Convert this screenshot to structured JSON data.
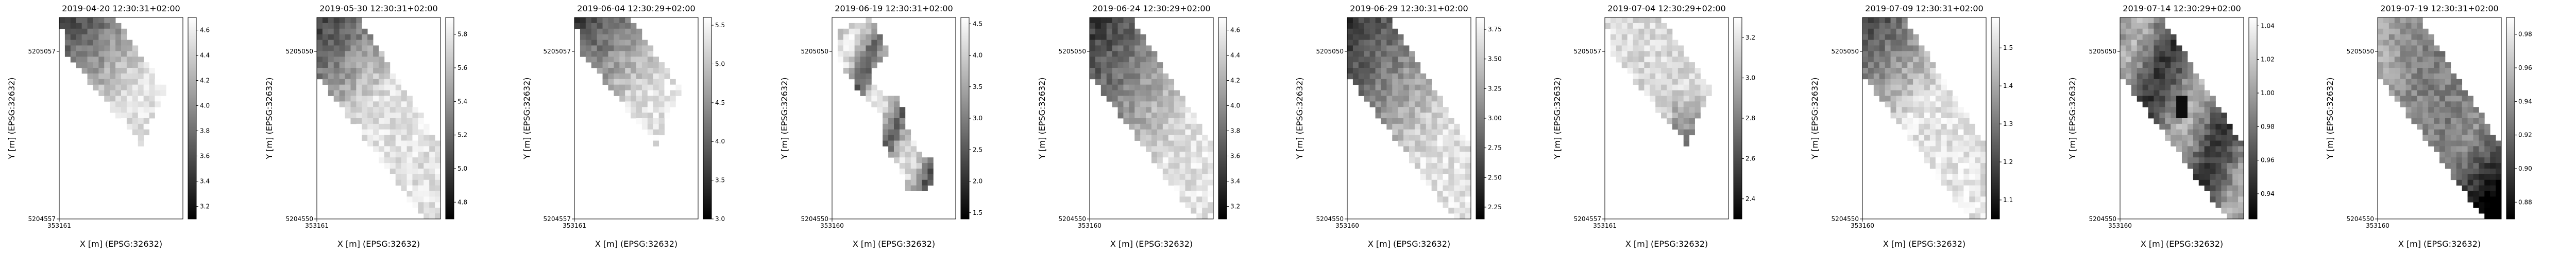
{
  "chart_data": [
    {
      "type": "heatmap",
      "title": "2019-04-20 12:30:31+02:00",
      "xlabel": "X [m] (EPSG:32632)",
      "ylabel": "Y [m] (EPSG:32632)",
      "x_ticks": [
        "353161"
      ],
      "y_ticks": [
        "5205057",
        "5204557"
      ],
      "colorbar": {
        "min": 3.1,
        "max": 4.7,
        "ticks": [
          "3.2",
          "3.4",
          "3.6",
          "3.8",
          "4.0",
          "4.2",
          "4.4",
          "4.6"
        ]
      },
      "shape": "A",
      "pattern": "topdark",
      "hotspot": null
    },
    {
      "type": "heatmap",
      "title": "2019-05-30 12:30:31+02:00",
      "xlabel": "X [m] (EPSG:32632)",
      "ylabel": "Y [m] (EPSG:32632)",
      "x_ticks": [
        "353161"
      ],
      "y_ticks": [
        "5205050",
        "5204550"
      ],
      "colorbar": {
        "min": 4.7,
        "max": 5.9,
        "ticks": [
          "4.8",
          "5.0",
          "5.2",
          "5.4",
          "5.6",
          "5.8"
        ]
      },
      "shape": "B",
      "pattern": "topdark",
      "hotspot": null
    },
    {
      "type": "heatmap",
      "title": "2019-06-04 12:30:29+02:00",
      "xlabel": "X [m] (EPSG:32632)",
      "ylabel": "Y [m] (EPSG:32632)",
      "x_ticks": [
        "353161"
      ],
      "y_ticks": [
        "5205057",
        "5204557"
      ],
      "colorbar": {
        "min": 3.0,
        "max": 5.6,
        "ticks": [
          "3.0",
          "3.5",
          "4.0",
          "4.5",
          "5.0",
          "5.5"
        ]
      },
      "shape": "A",
      "pattern": "topdark",
      "hotspot": null
    },
    {
      "type": "heatmap",
      "title": "2019-06-19 12:30:31+02:00",
      "xlabel": "X [m] (EPSG:32632)",
      "ylabel": "Y [m] (EPSG:32632)",
      "x_ticks": [
        "353160"
      ],
      "y_ticks": [
        "5205050",
        "5204550"
      ],
      "colorbar": {
        "min": 1.4,
        "max": 4.6,
        "ticks": [
          "1.5",
          "2.0",
          "2.5",
          "3.0",
          "3.5",
          "4.0",
          "4.5"
        ]
      },
      "shape": "C",
      "pattern": "patchy",
      "hotspot": null
    },
    {
      "type": "heatmap",
      "title": "2019-06-24 12:30:29+02:00",
      "xlabel": "X [m] (EPSG:32632)",
      "ylabel": "Y [m] (EPSG:32632)",
      "x_ticks": [
        "353160"
      ],
      "y_ticks": [
        "5205050",
        "5204550"
      ],
      "colorbar": {
        "min": 3.1,
        "max": 4.7,
        "ticks": [
          "3.2",
          "3.4",
          "3.6",
          "3.8",
          "4.0",
          "4.2",
          "4.4",
          "4.6"
        ]
      },
      "shape": "B",
      "pattern": "gradient",
      "hotspot": null
    },
    {
      "type": "heatmap",
      "title": "2019-06-29 12:30:31+02:00",
      "xlabel": "X [m] (EPSG:32632)",
      "ylabel": "Y [m] (EPSG:32632)",
      "x_ticks": [
        "353160"
      ],
      "y_ticks": [
        "5205050",
        "5204550"
      ],
      "colorbar": {
        "min": 2.15,
        "max": 3.85,
        "ticks": [
          "2.25",
          "2.50",
          "2.75",
          "3.00",
          "3.25",
          "3.50",
          "3.75"
        ]
      },
      "shape": "B",
      "pattern": "gradient",
      "hotspot": null
    },
    {
      "type": "heatmap",
      "title": "2019-07-04 12:30:29+02:00",
      "xlabel": "X [m] (EPSG:32632)",
      "ylabel": "Y [m] (EPSG:32632)",
      "x_ticks": [
        "353161"
      ],
      "y_ticks": [
        "5205057",
        "5204557"
      ],
      "colorbar": {
        "min": 2.3,
        "max": 3.3,
        "ticks": [
          "2.4",
          "2.6",
          "2.8",
          "3.0",
          "3.2"
        ]
      },
      "shape": "A",
      "pattern": "bottomdark",
      "hotspot": null
    },
    {
      "type": "heatmap",
      "title": "2019-07-09 12:30:31+02:00",
      "xlabel": "X [m] (EPSG:32632)",
      "ylabel": "Y [m] (EPSG:32632)",
      "x_ticks": [
        "353160"
      ],
      "y_ticks": [
        "5205050",
        "5204550"
      ],
      "colorbar": {
        "min": 1.05,
        "max": 1.58,
        "ticks": [
          "1.1",
          "1.2",
          "1.3",
          "1.4",
          "1.5"
        ]
      },
      "shape": "B",
      "pattern": "topdark",
      "hotspot": null
    },
    {
      "type": "heatmap",
      "title": "2019-07-14 12:30:29+02:00",
      "xlabel": "X [m] (EPSG:32632)",
      "ylabel": "Y [m] (EPSG:32632)",
      "x_ticks": [
        "353160"
      ],
      "y_ticks": [
        "5205050",
        "5204550"
      ],
      "colorbar": {
        "min": 0.925,
        "max": 1.045,
        "ticks": [
          "0.94",
          "0.96",
          "0.98",
          "1.00",
          "1.02",
          "1.04"
        ]
      },
      "shape": "B",
      "pattern": "mottled",
      "hotspot": [
        0.5,
        0.45
      ]
    },
    {
      "type": "heatmap",
      "title": "2019-07-19 12:30:31+02:00",
      "xlabel": "X [m] (EPSG:32632)",
      "ylabel": "Y [m] (EPSG:32632)",
      "x_ticks": [
        "353160"
      ],
      "y_ticks": [
        "5205050",
        "5204550"
      ],
      "colorbar": {
        "min": 0.87,
        "max": 0.99,
        "ticks": [
          "0.88",
          "0.90",
          "0.92",
          "0.94",
          "0.96",
          "0.98"
        ]
      },
      "shape": "B",
      "pattern": "cornerdark",
      "hotspot": null
    }
  ]
}
